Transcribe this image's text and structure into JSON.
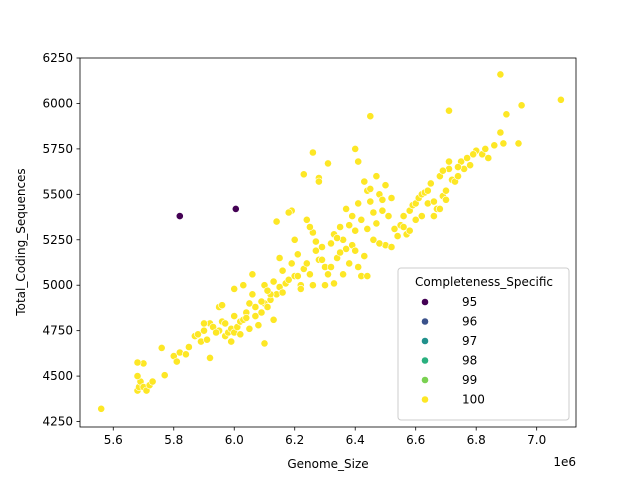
{
  "chart_data": {
    "type": "scatter",
    "title": "",
    "xlabel": "Genome_Size",
    "ylabel": "Total_Coding_Sequences",
    "x_offset_label": "1e6",
    "x_scale_factor": 1000000,
    "xlim": [
      5.49,
      7.13
    ],
    "ylim": [
      4220,
      6250
    ],
    "x_ticks": [
      "5.6",
      "5.8",
      "6.0",
      "6.2",
      "6.4",
      "6.6",
      "6.8",
      "7.0"
    ],
    "y_ticks": [
      "4250",
      "4500",
      "4750",
      "5000",
      "5250",
      "5500",
      "5750",
      "6000",
      "6250"
    ],
    "grid": false,
    "legend": {
      "title": "Completeness_Specific",
      "position": "lower-right",
      "entries": [
        {
          "label": "95",
          "color": "#440154"
        },
        {
          "label": "96",
          "color": "#3b528b"
        },
        {
          "label": "97",
          "color": "#21918c"
        },
        {
          "label": "98",
          "color": "#2ab07f"
        },
        {
          "label": "99",
          "color": "#7ad151"
        },
        {
          "label": "100",
          "color": "#fde725"
        }
      ]
    },
    "series": [
      {
        "name": "95",
        "color": "#440154",
        "points": [
          [
            5.82,
            5380
          ],
          [
            6.005,
            5420
          ]
        ]
      },
      {
        "name": "100",
        "color": "#fde725",
        "points": [
          [
            5.56,
            4320
          ],
          [
            5.68,
            4420
          ],
          [
            5.685,
            4440
          ],
          [
            5.69,
            4470
          ],
          [
            5.7,
            4440
          ],
          [
            5.71,
            4420
          ],
          [
            5.72,
            4450
          ],
          [
            5.73,
            4470
          ],
          [
            5.68,
            4500
          ],
          [
            5.7,
            4570
          ],
          [
            5.68,
            4575
          ],
          [
            5.77,
            4505
          ],
          [
            5.76,
            4655
          ],
          [
            5.8,
            4610
          ],
          [
            5.81,
            4580
          ],
          [
            5.82,
            4630
          ],
          [
            5.84,
            4620
          ],
          [
            5.85,
            4660
          ],
          [
            5.87,
            4720
          ],
          [
            5.88,
            4730
          ],
          [
            5.89,
            4690
          ],
          [
            5.9,
            4750
          ],
          [
            5.91,
            4700
          ],
          [
            5.92,
            4600
          ],
          [
            5.92,
            4790
          ],
          [
            5.93,
            4770
          ],
          [
            5.95,
            4750
          ],
          [
            5.95,
            4880
          ],
          [
            5.96,
            4800
          ],
          [
            5.97,
            4720
          ],
          [
            5.98,
            4740
          ],
          [
            5.99,
            4760
          ],
          [
            6.0,
            4740
          ],
          [
            6.0,
            4830
          ],
          [
            6.01,
            4770
          ],
          [
            6.02,
            4800
          ],
          [
            6.03,
            4810
          ],
          [
            6.04,
            4850
          ],
          [
            6.05,
            4900
          ],
          [
            6.06,
            4950
          ],
          [
            6.07,
            4830
          ],
          [
            6.08,
            4780
          ],
          [
            6.09,
            4850
          ],
          [
            6.1,
            4900
          ],
          [
            6.11,
            4880
          ],
          [
            6.12,
            4920
          ],
          [
            6.13,
            4810
          ],
          [
            6.14,
            4950
          ],
          [
            6.15,
            4990
          ],
          [
            6.16,
            4960
          ],
          [
            6.17,
            5010
          ],
          [
            6.18,
            5030
          ],
          [
            6.19,
            5120
          ],
          [
            6.2,
            5050
          ],
          [
            6.21,
            5170
          ],
          [
            6.22,
            5000
          ],
          [
            6.23,
            5090
          ],
          [
            6.24,
            5120
          ],
          [
            6.25,
            5060
          ],
          [
            6.26,
            5000
          ],
          [
            6.27,
            5190
          ],
          [
            6.28,
            5140
          ],
          [
            6.29,
            5210
          ],
          [
            6.3,
            5100
          ],
          [
            6.31,
            5060
          ],
          [
            6.32,
            5230
          ],
          [
            6.33,
            5280
          ],
          [
            6.34,
            5150
          ],
          [
            6.35,
            5320
          ],
          [
            6.36,
            5250
          ],
          [
            6.37,
            5200
          ],
          [
            6.38,
            5120
          ],
          [
            6.39,
            5380
          ],
          [
            6.4,
            5300
          ],
          [
            6.41,
            5450
          ],
          [
            6.42,
            5360
          ],
          [
            6.43,
            5160
          ],
          [
            6.44,
            5520
          ],
          [
            6.45,
            5460
          ],
          [
            6.46,
            5400
          ],
          [
            6.47,
            5340
          ],
          [
            6.48,
            5500
          ],
          [
            6.49,
            5410
          ],
          [
            6.5,
            5220
          ],
          [
            6.51,
            5380
          ],
          [
            6.52,
            5210
          ],
          [
            6.55,
            5330
          ],
          [
            6.56,
            5320
          ],
          [
            6.57,
            5280
          ],
          [
            6.58,
            5410
          ],
          [
            6.59,
            5440
          ],
          [
            6.6,
            5450
          ],
          [
            6.61,
            5480
          ],
          [
            6.62,
            5500
          ],
          [
            6.63,
            5510
          ],
          [
            6.64,
            5520
          ],
          [
            6.65,
            5560
          ],
          [
            6.66,
            5380
          ],
          [
            6.67,
            5420
          ],
          [
            6.68,
            5600
          ],
          [
            6.69,
            5490
          ],
          [
            6.7,
            5520
          ],
          [
            6.71,
            5640
          ],
          [
            6.72,
            5580
          ],
          [
            6.73,
            5570
          ],
          [
            6.74,
            5600
          ],
          [
            6.75,
            5680
          ],
          [
            6.76,
            5640
          ],
          [
            6.78,
            5660
          ],
          [
            6.8,
            5740
          ],
          [
            6.82,
            5720
          ],
          [
            6.84,
            5700
          ],
          [
            6.86,
            5770
          ],
          [
            6.88,
            5840
          ],
          [
            6.89,
            5780
          ],
          [
            6.9,
            5940
          ],
          [
            6.95,
            5990
          ],
          [
            6.94,
            5780
          ],
          [
            6.88,
            6160
          ],
          [
            7.08,
            6020
          ],
          [
            6.71,
            5960
          ],
          [
            6.45,
            5930
          ],
          [
            6.4,
            5750
          ],
          [
            6.41,
            5680
          ],
          [
            6.26,
            5730
          ],
          [
            6.23,
            5610
          ],
          [
            6.28,
            5590
          ],
          [
            6.28,
            5570
          ],
          [
            6.31,
            5670
          ],
          [
            6.19,
            5410
          ],
          [
            6.18,
            5400
          ],
          [
            6.14,
            5350
          ],
          [
            6.2,
            5250
          ],
          [
            6.1,
            5000
          ],
          [
            6.1,
            4680
          ],
          [
            6.12,
            4950
          ],
          [
            6.06,
            5060
          ],
          [
            6.03,
            5000
          ],
          [
            6.0,
            4980
          ],
          [
            5.96,
            4890
          ],
          [
            6.42,
            5050
          ],
          [
            6.44,
            5050
          ],
          [
            6.43,
            5570
          ],
          [
            6.45,
            5530
          ],
          [
            6.47,
            5600
          ],
          [
            6.5,
            5550
          ],
          [
            6.52,
            5480
          ],
          [
            6.56,
            5380
          ],
          [
            6.58,
            5300
          ],
          [
            6.62,
            5380
          ],
          [
            6.64,
            5450
          ],
          [
            6.66,
            5460
          ],
          [
            6.68,
            5420
          ],
          [
            6.7,
            5470
          ],
          [
            6.69,
            5630
          ],
          [
            6.71,
            5680
          ],
          [
            6.74,
            5650
          ],
          [
            6.77,
            5700
          ],
          [
            6.79,
            5720
          ],
          [
            6.83,
            5750
          ],
          [
            6.37,
            5420
          ],
          [
            6.38,
            5330
          ],
          [
            6.36,
            5060
          ],
          [
            6.33,
            5010
          ],
          [
            6.32,
            5100
          ],
          [
            6.3,
            5000
          ],
          [
            6.29,
            5140
          ],
          [
            6.27,
            5240
          ],
          [
            6.26,
            5290
          ],
          [
            6.25,
            5320
          ],
          [
            6.24,
            5360
          ],
          [
            6.35,
            5180
          ],
          [
            6.34,
            5260
          ],
          [
            6.39,
            5220
          ],
          [
            6.41,
            5100
          ],
          [
            6.4,
            5190
          ],
          [
            6.44,
            5310
          ],
          [
            6.46,
            5250
          ],
          [
            6.48,
            5230
          ],
          [
            6.49,
            5470
          ],
          [
            6.53,
            5310
          ],
          [
            6.54,
            5270
          ],
          [
            6.6,
            5360
          ],
          [
            6.22,
            4980
          ],
          [
            6.21,
            5050
          ],
          [
            6.16,
            5080
          ],
          [
            6.15,
            5150
          ],
          [
            6.13,
            5020
          ],
          [
            6.11,
            4970
          ],
          [
            6.09,
            4910
          ],
          [
            6.07,
            4880
          ],
          [
            6.05,
            4760
          ],
          [
            6.04,
            4820
          ],
          [
            6.02,
            4730
          ],
          [
            5.99,
            4690
          ],
          [
            5.97,
            4790
          ],
          [
            5.94,
            4740
          ],
          [
            5.9,
            4790
          ]
        ]
      }
    ]
  }
}
